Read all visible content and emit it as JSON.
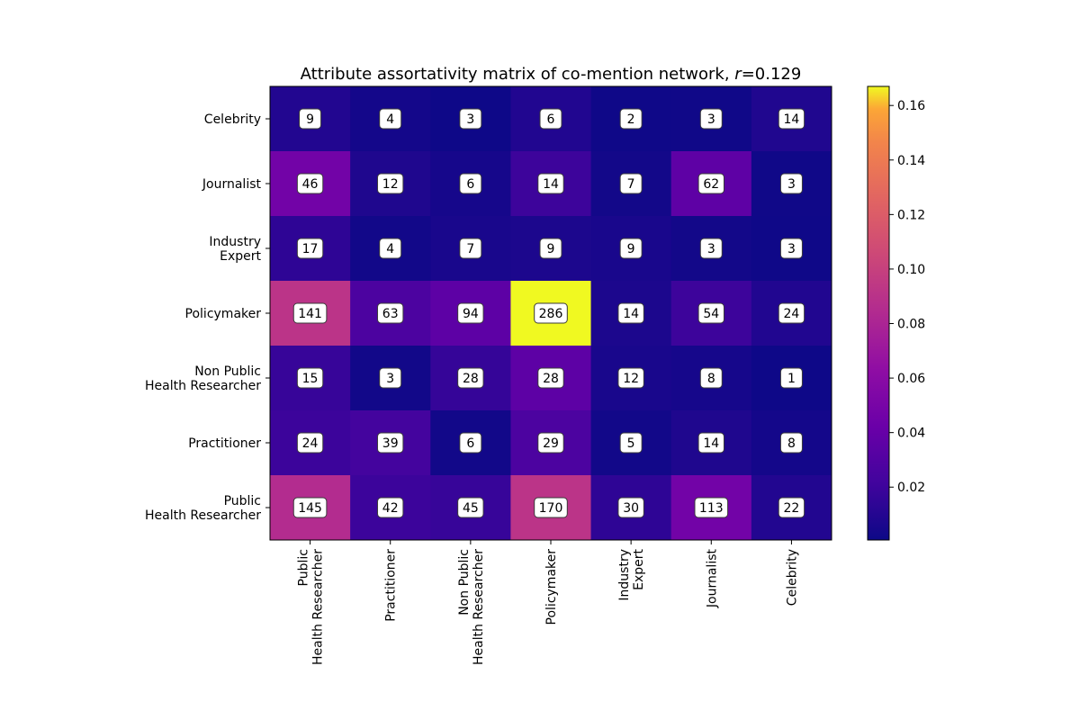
{
  "chart_data": {
    "type": "heatmap",
    "title_prefix": "Attribute assortativity matrix of co-mention network, ",
    "title_r_symbol": "r",
    "title_r_value": "=0.129",
    "row_labels": [
      [
        "Celebrity"
      ],
      [
        "Journalist"
      ],
      [
        "Industry",
        "Expert"
      ],
      [
        "Policymaker"
      ],
      [
        "Non Public",
        "Health Researcher"
      ],
      [
        "Practitioner"
      ],
      [
        "Public",
        "Health Researcher"
      ]
    ],
    "col_labels": [
      [
        "Public",
        "Health Researcher"
      ],
      [
        "Practitioner"
      ],
      [
        "Non Public",
        "Health Researcher"
      ],
      [
        "Policymaker"
      ],
      [
        "Industry",
        "Expert"
      ],
      [
        "Journalist"
      ],
      [
        "Celebrity"
      ]
    ],
    "counts": [
      [
        9,
        4,
        3,
        6,
        2,
        3,
        14
      ],
      [
        46,
        12,
        6,
        14,
        7,
        62,
        3
      ],
      [
        17,
        4,
        7,
        9,
        9,
        3,
        3
      ],
      [
        141,
        63,
        94,
        286,
        14,
        54,
        24
      ],
      [
        15,
        3,
        28,
        28,
        12,
        8,
        1
      ],
      [
        24,
        39,
        6,
        29,
        5,
        14,
        8
      ],
      [
        145,
        42,
        45,
        170,
        30,
        113,
        22
      ]
    ],
    "colorbar": {
      "colormap": "plasma",
      "min": 0.0006,
      "max": 0.167,
      "ticks": [
        0.02,
        0.04,
        0.06,
        0.08,
        0.1,
        0.12,
        0.14,
        0.16
      ],
      "tick_labels": [
        "0.02",
        "0.04",
        "0.06",
        "0.08",
        "0.10",
        "0.12",
        "0.14",
        "0.16"
      ]
    },
    "grid": false
  }
}
